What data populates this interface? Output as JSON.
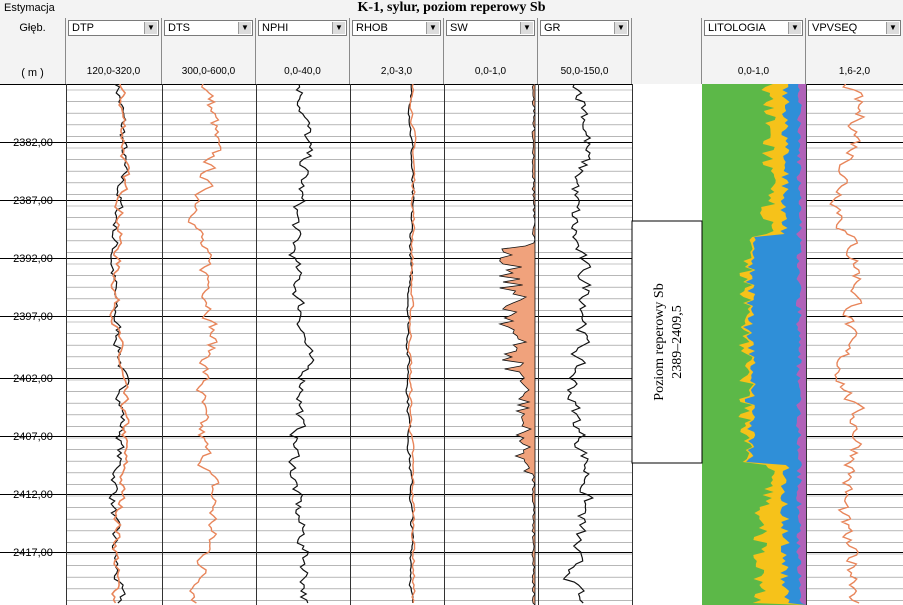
{
  "header": {
    "left_label": "Estymacja",
    "title": "K-1,  sylur, poziom reperowy Sb"
  },
  "depth_column": {
    "label": "Głęb.",
    "unit": "( m )"
  },
  "tracks": [
    {
      "id": "dtp",
      "name": "DTP",
      "range": "120,0-320,0"
    },
    {
      "id": "dts",
      "name": "DTS",
      "range": "300,0-600,0"
    },
    {
      "id": "nphi",
      "name": "NPHI",
      "range": "0,0-40,0"
    },
    {
      "id": "rhob",
      "name": "RHOB",
      "range": "2,0-3,0"
    },
    {
      "id": "sw",
      "name": "SW",
      "range": "0,0-1,0"
    },
    {
      "id": "gr",
      "name": "GR",
      "range": "50,0-150,0"
    },
    {
      "id": "litologia",
      "name": "LITOLOGIA",
      "range": "0,0-1,0"
    },
    {
      "id": "vpvseq",
      "name": "VPVSEQ",
      "range": "1,6-2,0"
    }
  ],
  "depth_ticks": [
    "2382,00",
    "2387,00",
    "2392,00",
    "2397,00",
    "2402,00",
    "2407,00",
    "2412,00",
    "2417,00"
  ],
  "zone": {
    "line1": "Poziom reperowy Sb",
    "line2": "2389–2409,5"
  },
  "colors": {
    "orange_curve": "#e8855a",
    "black_curve": "#111111",
    "sw_fill": "#f0a27c",
    "lith_green": "#5cb848",
    "lith_yellow": "#f6c21a",
    "lith_blue": "#2f8fd8",
    "lith_purple": "#b062b8",
    "grid_major": "#000000",
    "grid_minor": "#8c8c8c"
  }
}
